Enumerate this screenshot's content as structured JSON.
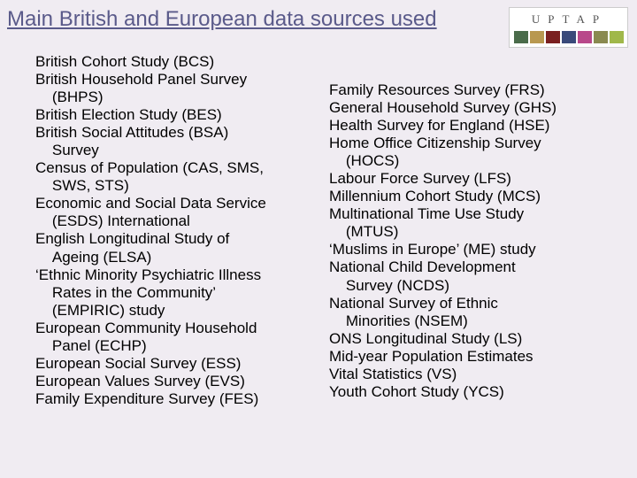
{
  "title": "Main British and European data sources used",
  "logo": {
    "text": "UPTAP",
    "colors": [
      "#4a6b4a",
      "#b89850",
      "#7a2020",
      "#3a4a7a",
      "#b8488a",
      "#8a8a50",
      "#a0b84a"
    ]
  },
  "leftColumn": [
    "British Cohort Study (BCS)",
    "British Household Panel Survey",
    "    (BHPS)",
    "British Election Study (BES)",
    "British Social Attitudes (BSA)",
    "    Survey",
    "Census of Population (CAS, SMS,",
    "    SWS, STS)",
    "Economic and Social Data Service",
    "    (ESDS) International",
    "English Longitudinal Study of",
    "    Ageing (ELSA)",
    "‘Ethnic Minority Psychiatric Illness",
    "    Rates in the Community’",
    "    (EMPIRIC) study",
    "European Community Household",
    "    Panel (ECHP)",
    "European Social Survey (ESS)",
    "European Values Survey (EVS)",
    "Family Expenditure Survey (FES)"
  ],
  "rightColumn": [
    "Family Resources Survey (FRS)",
    "General Household Survey (GHS)",
    "Health Survey for England (HSE)",
    "Home Office Citizenship Survey",
    "    (HOCS)",
    "Labour Force Survey (LFS)",
    "Millennium Cohort Study (MCS)",
    "Multinational Time Use Study",
    "    (MTUS)",
    "‘Muslims in Europe’ (ME) study",
    "National Child Development",
    "    Survey (NCDS)",
    "National Survey of Ethnic",
    "    Minorities (NSEM)",
    "ONS Longitudinal Study (LS)",
    "Mid-year Population Estimates",
    "Vital Statistics (VS)",
    "Youth Cohort Study (YCS)"
  ]
}
